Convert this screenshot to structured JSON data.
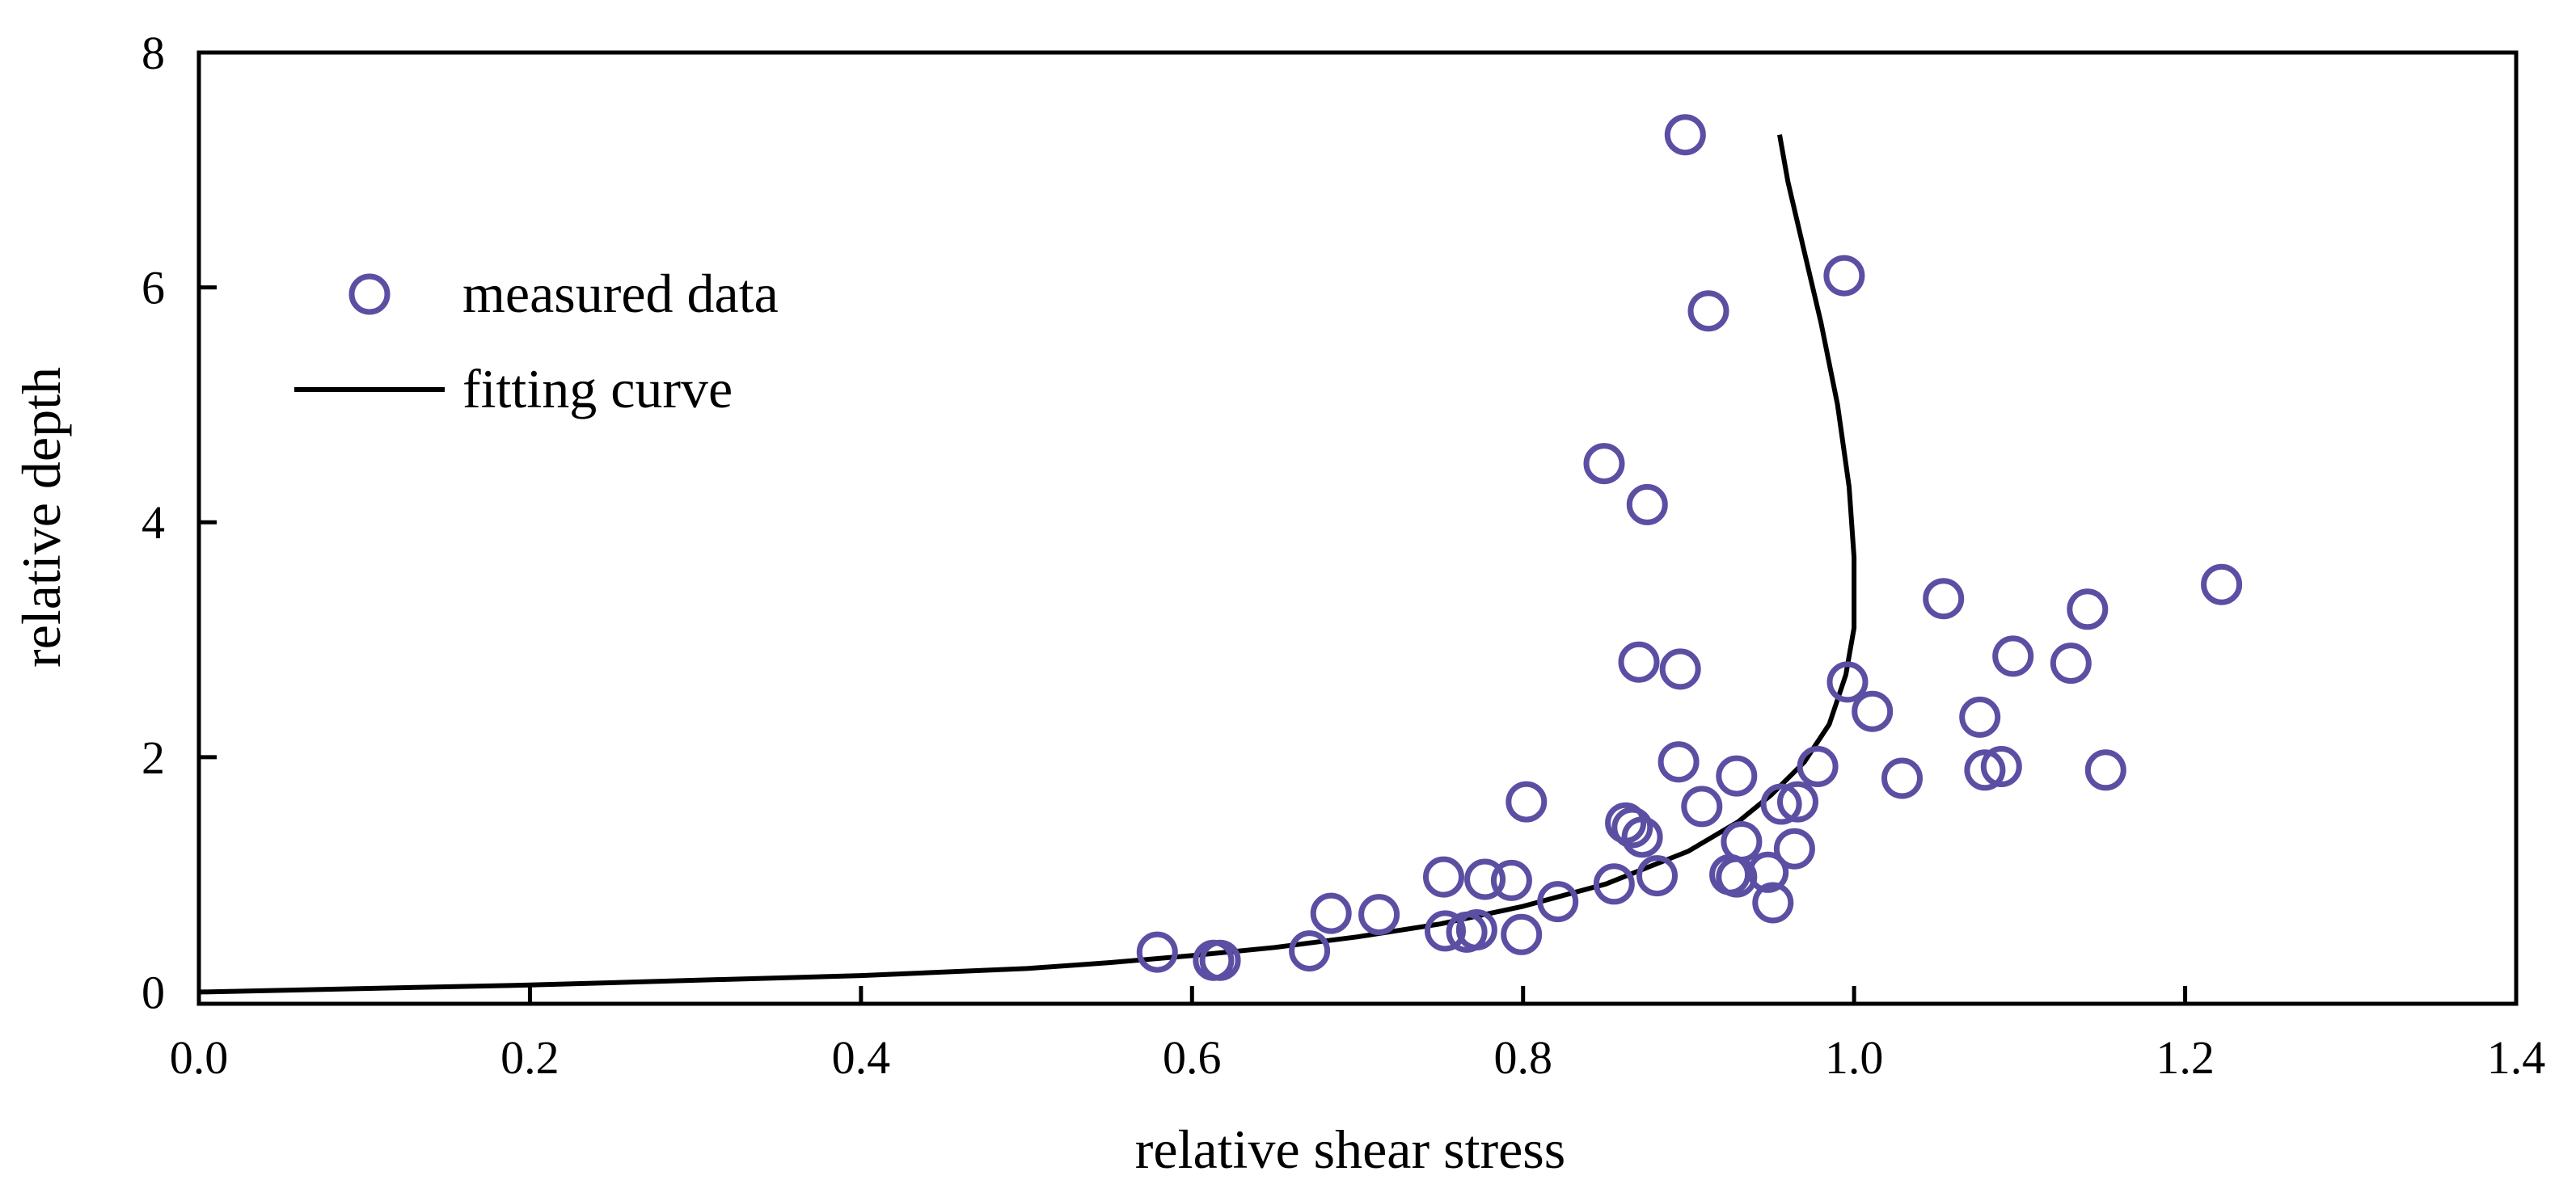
{
  "chart_data": {
    "type": "scatter",
    "title": "",
    "xlabel": "relative shear stress",
    "ylabel": "relative depth",
    "xlim": [
      0.0,
      1.4
    ],
    "ylim": [
      -0.1,
      8.0
    ],
    "xticks": [
      "0.0",
      "0.2",
      "0.4",
      "0.6",
      "0.8",
      "1.0",
      "1.2",
      "1.4"
    ],
    "yticks": [
      "0",
      "2",
      "4",
      "6",
      "8"
    ],
    "legend_position": "upper-left",
    "grid": false,
    "colors": {
      "marker": "#5b4fa3",
      "line": "#000000"
    },
    "series": [
      {
        "name": "measured data",
        "kind": "scatter",
        "x": [
          0.898,
          0.994,
          0.912,
          0.849,
          0.875,
          1.222,
          1.054,
          1.141,
          1.096,
          1.131,
          0.87,
          0.895,
          0.996,
          1.011,
          1.076,
          1.089,
          1.079,
          1.152,
          0.894,
          0.929,
          1.029,
          0.978,
          0.802,
          0.908,
          0.956,
          0.966,
          0.862,
          0.866,
          0.872,
          0.932,
          0.964,
          0.752,
          0.777,
          0.793,
          0.925,
          0.929,
          0.948,
          0.881,
          0.855,
          0.821,
          0.684,
          0.713,
          0.753,
          0.766,
          0.772,
          0.799,
          0.951,
          0.579,
          0.613,
          0.617,
          0.671
        ],
        "y": [
          7.3,
          6.1,
          5.8,
          4.5,
          4.15,
          3.47,
          3.35,
          3.26,
          2.86,
          2.8,
          2.81,
          2.75,
          2.64,
          2.39,
          2.34,
          1.92,
          1.89,
          1.89,
          1.96,
          1.84,
          1.82,
          1.92,
          1.62,
          1.58,
          1.6,
          1.62,
          1.44,
          1.4,
          1.32,
          1.28,
          1.22,
          0.98,
          0.96,
          0.95,
          1.0,
          0.98,
          1.02,
          0.99,
          0.92,
          0.77,
          0.67,
          0.66,
          0.52,
          0.51,
          0.53,
          0.49,
          0.76,
          0.34,
          0.27,
          0.27,
          0.35
        ]
      },
      {
        "name": "fitting curve",
        "kind": "line",
        "x": [
          0.0,
          0.1,
          0.2,
          0.3,
          0.4,
          0.5,
          0.55,
          0.6,
          0.65,
          0.7,
          0.75,
          0.8,
          0.85,
          0.9,
          0.93,
          0.95,
          0.97,
          0.985,
          0.995,
          1.0,
          1.0,
          0.997,
          0.99,
          0.98,
          0.97,
          0.96,
          0.955
        ],
        "y": [
          0.0,
          0.03,
          0.06,
          0.1,
          0.14,
          0.2,
          0.25,
          0.31,
          0.38,
          0.47,
          0.58,
          0.73,
          0.92,
          1.2,
          1.45,
          1.68,
          1.96,
          2.28,
          2.7,
          3.1,
          3.7,
          4.3,
          5.0,
          5.7,
          6.3,
          6.9,
          7.3
        ]
      }
    ]
  }
}
